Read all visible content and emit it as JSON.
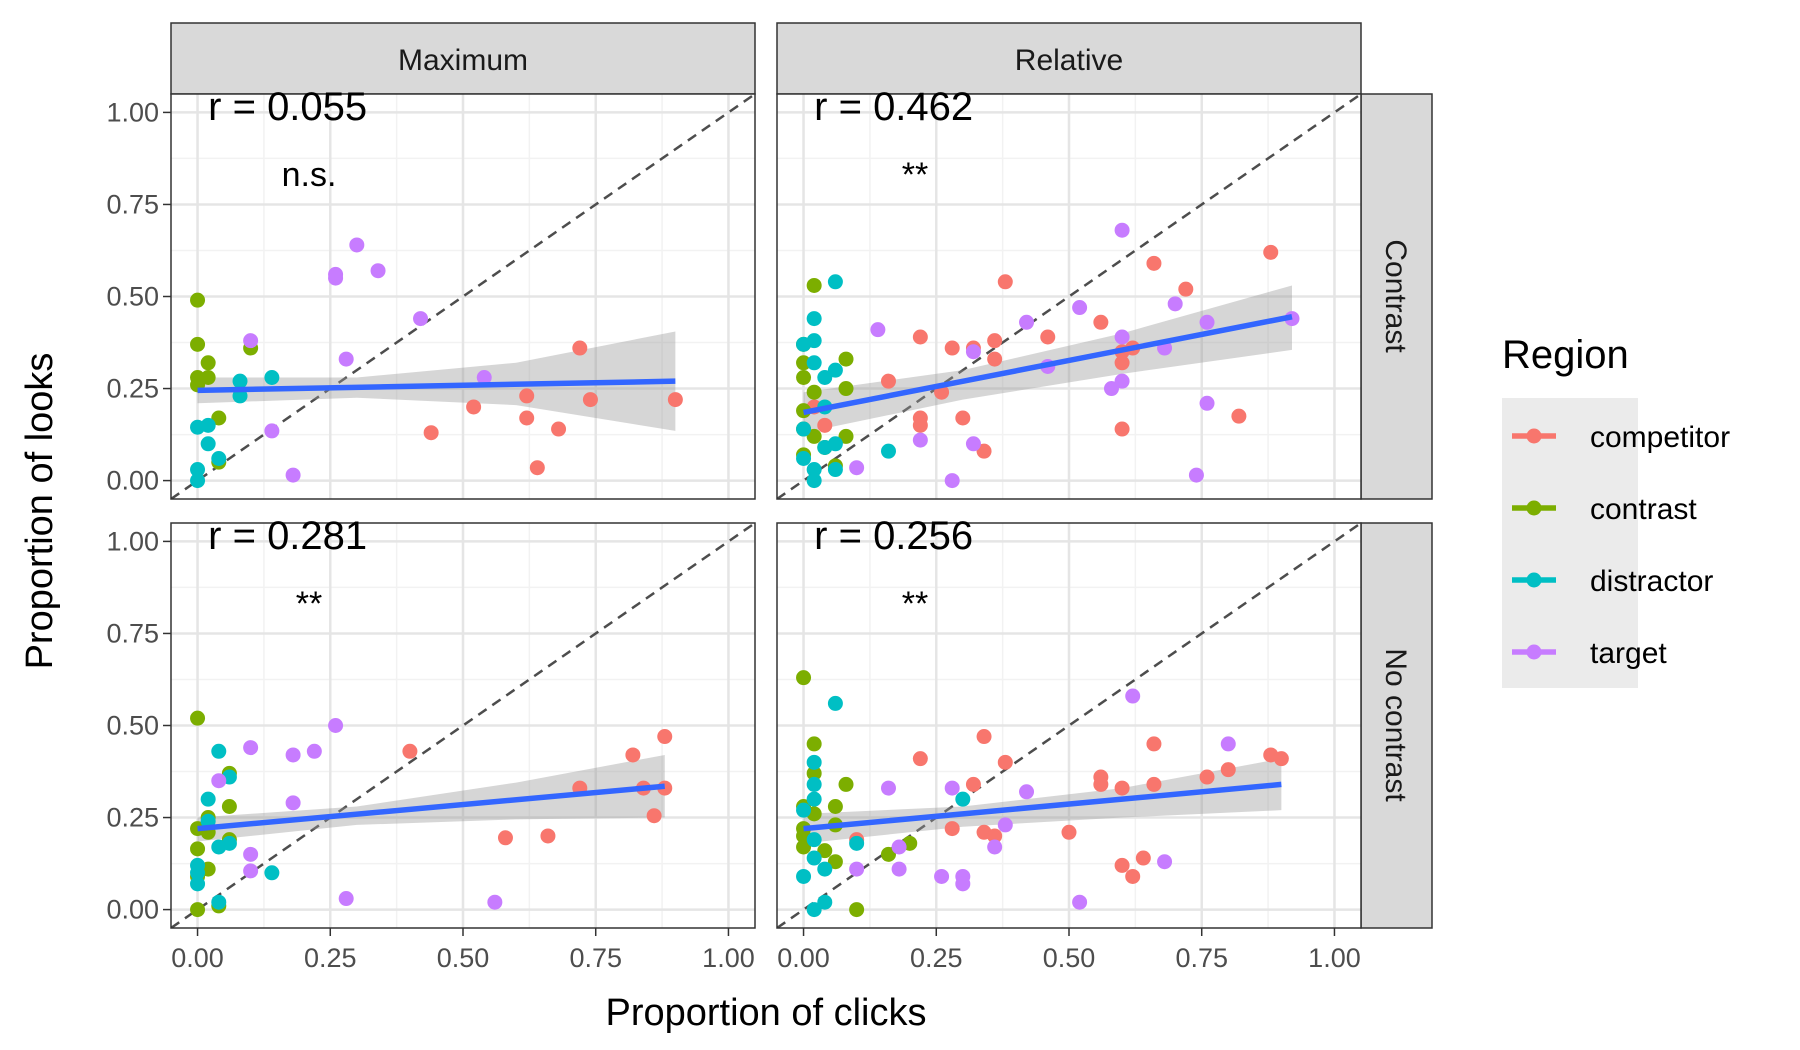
{
  "chart_data": {
    "type": "scatter",
    "xlabel": "Proportion of clicks",
    "ylabel": "Proportion of looks",
    "xlim": [
      -0.05,
      1.05
    ],
    "ylim": [
      -0.05,
      1.05
    ],
    "x_ticks": [
      "0.00",
      "0.25",
      "0.50",
      "0.75",
      "1.00"
    ],
    "y_ticks": [
      "0.00",
      "0.25",
      "0.50",
      "0.75",
      "1.00"
    ],
    "col_facets": [
      "Maximum",
      "Relative"
    ],
    "row_facets": [
      "Contrast",
      "No contrast"
    ],
    "grid": true,
    "reference_line": "y = x (dashed)",
    "legend": {
      "title": "Region",
      "position": "right",
      "items": [
        {
          "name": "competitor",
          "color": "#F8766D"
        },
        {
          "name": "contrast",
          "color": "#7CAE00"
        },
        {
          "name": "distractor",
          "color": "#00BFC4"
        },
        {
          "name": "target",
          "color": "#C77CFF"
        }
      ]
    },
    "fit_color": "#3366FF",
    "band_color": "#999999",
    "panels": [
      {
        "col": "Maximum",
        "row": "Contrast",
        "r_label": "r = 0.055",
        "sig_label": "n.s.",
        "fit": {
          "x": [
            0.0,
            0.9
          ],
          "y": [
            0.245,
            0.27
          ]
        },
        "band": {
          "x": [
            0.0,
            0.3,
            0.6,
            0.9
          ],
          "upper": [
            0.28,
            0.28,
            0.32,
            0.405
          ],
          "lower": [
            0.21,
            0.225,
            0.205,
            0.135
          ]
        },
        "points": {
          "competitor": [
            [
              0.44,
              0.13
            ],
            [
              0.52,
              0.2
            ],
            [
              0.62,
              0.23
            ],
            [
              0.62,
              0.17
            ],
            [
              0.64,
              0.035
            ],
            [
              0.68,
              0.14
            ],
            [
              0.72,
              0.36
            ],
            [
              0.74,
              0.22
            ],
            [
              0.9,
              0.22
            ]
          ],
          "contrast": [
            [
              0.0,
              0.49
            ],
            [
              0.0,
              0.37
            ],
            [
              0.0,
              0.28
            ],
            [
              0.0,
              0.26
            ],
            [
              0.02,
              0.32
            ],
            [
              0.02,
              0.28
            ],
            [
              0.04,
              0.17
            ],
            [
              0.04,
              0.05
            ],
            [
              0.1,
              0.36
            ]
          ],
          "distractor": [
            [
              0.0,
              0.145
            ],
            [
              0.0,
              0.03
            ],
            [
              0.0,
              0.0
            ],
            [
              0.02,
              0.1
            ],
            [
              0.02,
              0.15
            ],
            [
              0.04,
              0.06
            ],
            [
              0.08,
              0.27
            ],
            [
              0.08,
              0.23
            ],
            [
              0.14,
              0.28
            ]
          ],
          "target": [
            [
              0.1,
              0.38
            ],
            [
              0.14,
              0.135
            ],
            [
              0.18,
              0.015
            ],
            [
              0.26,
              0.55
            ],
            [
              0.26,
              0.56
            ],
            [
              0.28,
              0.33
            ],
            [
              0.3,
              0.64
            ],
            [
              0.34,
              0.57
            ],
            [
              0.42,
              0.44
            ],
            [
              0.54,
              0.28
            ]
          ]
        }
      },
      {
        "col": "Relative",
        "row": "Contrast",
        "r_label": "r = 0.462",
        "sig_label": "**",
        "fit": {
          "x": [
            0.0,
            0.92
          ],
          "y": [
            0.185,
            0.445
          ]
        },
        "band": {
          "x": [
            0.0,
            0.3,
            0.6,
            0.92
          ],
          "upper": [
            0.24,
            0.3,
            0.4,
            0.53
          ],
          "lower": [
            0.13,
            0.22,
            0.29,
            0.355
          ]
        },
        "points": {
          "competitor": [
            [
              0.02,
              0.2
            ],
            [
              0.04,
              0.15
            ],
            [
              0.16,
              0.27
            ],
            [
              0.22,
              0.39
            ],
            [
              0.22,
              0.17
            ],
            [
              0.22,
              0.15
            ],
            [
              0.26,
              0.24
            ],
            [
              0.28,
              0.36
            ],
            [
              0.3,
              0.17
            ],
            [
              0.32,
              0.36
            ],
            [
              0.34,
              0.08
            ],
            [
              0.36,
              0.33
            ],
            [
              0.36,
              0.38
            ],
            [
              0.38,
              0.54
            ],
            [
              0.46,
              0.39
            ],
            [
              0.56,
              0.43
            ],
            [
              0.6,
              0.32
            ],
            [
              0.6,
              0.14
            ],
            [
              0.6,
              0.35
            ],
            [
              0.62,
              0.36
            ],
            [
              0.66,
              0.59
            ],
            [
              0.72,
              0.52
            ],
            [
              0.82,
              0.175
            ],
            [
              0.88,
              0.62
            ]
          ],
          "contrast": [
            [
              0.0,
              0.37
            ],
            [
              0.0,
              0.32
            ],
            [
              0.0,
              0.28
            ],
            [
              0.0,
              0.19
            ],
            [
              0.0,
              0.14
            ],
            [
              0.0,
              0.07
            ],
            [
              0.02,
              0.53
            ],
            [
              0.02,
              0.24
            ],
            [
              0.02,
              0.12
            ],
            [
              0.04,
              0.09
            ],
            [
              0.06,
              0.04
            ],
            [
              0.08,
              0.33
            ],
            [
              0.08,
              0.25
            ],
            [
              0.08,
              0.12
            ]
          ],
          "distractor": [
            [
              0.0,
              0.37
            ],
            [
              0.0,
              0.14
            ],
            [
              0.0,
              0.06
            ],
            [
              0.02,
              0.44
            ],
            [
              0.02,
              0.38
            ],
            [
              0.02,
              0.32
            ],
            [
              0.02,
              0.03
            ],
            [
              0.02,
              0.0
            ],
            [
              0.04,
              0.28
            ],
            [
              0.04,
              0.2
            ],
            [
              0.04,
              0.09
            ],
            [
              0.06,
              0.54
            ],
            [
              0.06,
              0.3
            ],
            [
              0.06,
              0.1
            ],
            [
              0.06,
              0.03
            ],
            [
              0.16,
              0.08
            ]
          ],
          "target": [
            [
              0.1,
              0.035
            ],
            [
              0.14,
              0.41
            ],
            [
              0.22,
              0.11
            ],
            [
              0.28,
              0.0
            ],
            [
              0.32,
              0.35
            ],
            [
              0.32,
              0.1
            ],
            [
              0.42,
              0.43
            ],
            [
              0.46,
              0.31
            ],
            [
              0.52,
              0.47
            ],
            [
              0.58,
              0.25
            ],
            [
              0.6,
              0.68
            ],
            [
              0.6,
              0.39
            ],
            [
              0.6,
              0.27
            ],
            [
              0.68,
              0.36
            ],
            [
              0.7,
              0.48
            ],
            [
              0.74,
              0.015
            ],
            [
              0.76,
              0.43
            ],
            [
              0.76,
              0.21
            ],
            [
              0.92,
              0.44
            ]
          ]
        }
      },
      {
        "col": "Maximum",
        "row": "No contrast",
        "r_label": "r = 0.281",
        "sig_label": "**",
        "fit": {
          "x": [
            0.0,
            0.88
          ],
          "y": [
            0.22,
            0.335
          ]
        },
        "band": {
          "x": [
            0.0,
            0.3,
            0.6,
            0.88
          ],
          "upper": [
            0.25,
            0.28,
            0.345,
            0.42
          ],
          "lower": [
            0.185,
            0.23,
            0.245,
            0.25
          ]
        },
        "points": {
          "competitor": [
            [
              0.4,
              0.43
            ],
            [
              0.58,
              0.195
            ],
            [
              0.66,
              0.2
            ],
            [
              0.72,
              0.33
            ],
            [
              0.82,
              0.42
            ],
            [
              0.84,
              0.33
            ],
            [
              0.86,
              0.255
            ],
            [
              0.88,
              0.47
            ],
            [
              0.88,
              0.33
            ]
          ],
          "contrast": [
            [
              0.0,
              0.52
            ],
            [
              0.0,
              0.22
            ],
            [
              0.0,
              0.165
            ],
            [
              0.0,
              0.09
            ],
            [
              0.0,
              0.0
            ],
            [
              0.02,
              0.25
            ],
            [
              0.02,
              0.21
            ],
            [
              0.02,
              0.11
            ],
            [
              0.04,
              0.01
            ],
            [
              0.06,
              0.37
            ],
            [
              0.06,
              0.28
            ],
            [
              0.06,
              0.19
            ]
          ],
          "distractor": [
            [
              0.0,
              0.12
            ],
            [
              0.0,
              0.1
            ],
            [
              0.0,
              0.07
            ],
            [
              0.02,
              0.3
            ],
            [
              0.02,
              0.24
            ],
            [
              0.04,
              0.43
            ],
            [
              0.04,
              0.17
            ],
            [
              0.04,
              0.02
            ],
            [
              0.06,
              0.36
            ],
            [
              0.06,
              0.18
            ],
            [
              0.14,
              0.1
            ]
          ],
          "target": [
            [
              0.04,
              0.35
            ],
            [
              0.1,
              0.44
            ],
            [
              0.1,
              0.15
            ],
            [
              0.1,
              0.105
            ],
            [
              0.18,
              0.42
            ],
            [
              0.18,
              0.29
            ],
            [
              0.22,
              0.43
            ],
            [
              0.26,
              0.5
            ],
            [
              0.28,
              0.03
            ],
            [
              0.56,
              0.02
            ]
          ]
        }
      },
      {
        "col": "Relative",
        "row": "No contrast",
        "r_label": "r = 0.256",
        "sig_label": "**",
        "fit": {
          "x": [
            0.0,
            0.9
          ],
          "y": [
            0.22,
            0.34
          ]
        },
        "band": {
          "x": [
            0.0,
            0.3,
            0.6,
            0.9
          ],
          "upper": [
            0.26,
            0.28,
            0.33,
            0.41
          ],
          "lower": [
            0.18,
            0.225,
            0.25,
            0.27
          ]
        },
        "points": {
          "competitor": [
            [
              0.1,
              0.19
            ],
            [
              0.22,
              0.41
            ],
            [
              0.28,
              0.22
            ],
            [
              0.32,
              0.34
            ],
            [
              0.34,
              0.21
            ],
            [
              0.34,
              0.47
            ],
            [
              0.36,
              0.2
            ],
            [
              0.38,
              0.4
            ],
            [
              0.5,
              0.21
            ],
            [
              0.56,
              0.36
            ],
            [
              0.56,
              0.34
            ],
            [
              0.6,
              0.33
            ],
            [
              0.6,
              0.12
            ],
            [
              0.62,
              0.09
            ],
            [
              0.64,
              0.14
            ],
            [
              0.66,
              0.45
            ],
            [
              0.66,
              0.34
            ],
            [
              0.76,
              0.36
            ],
            [
              0.8,
              0.38
            ],
            [
              0.88,
              0.42
            ],
            [
              0.9,
              0.41
            ]
          ],
          "contrast": [
            [
              0.0,
              0.63
            ],
            [
              0.0,
              0.28
            ],
            [
              0.0,
              0.22
            ],
            [
              0.0,
              0.2
            ],
            [
              0.0,
              0.17
            ],
            [
              0.02,
              0.45
            ],
            [
              0.02,
              0.37
            ],
            [
              0.02,
              0.26
            ],
            [
              0.04,
              0.16
            ],
            [
              0.06,
              0.28
            ],
            [
              0.06,
              0.23
            ],
            [
              0.06,
              0.13
            ],
            [
              0.08,
              0.34
            ],
            [
              0.1,
              0.0
            ],
            [
              0.16,
              0.15
            ],
            [
              0.2,
              0.18
            ]
          ],
          "distractor": [
            [
              0.0,
              0.27
            ],
            [
              0.0,
              0.09
            ],
            [
              0.02,
              0.4
            ],
            [
              0.02,
              0.34
            ],
            [
              0.02,
              0.3
            ],
            [
              0.02,
              0.19
            ],
            [
              0.02,
              0.14
            ],
            [
              0.02,
              0.0
            ],
            [
              0.04,
              0.11
            ],
            [
              0.04,
              0.02
            ],
            [
              0.06,
              0.56
            ],
            [
              0.1,
              0.18
            ],
            [
              0.3,
              0.3
            ]
          ],
          "target": [
            [
              0.1,
              0.11
            ],
            [
              0.16,
              0.33
            ],
            [
              0.18,
              0.17
            ],
            [
              0.18,
              0.11
            ],
            [
              0.26,
              0.09
            ],
            [
              0.28,
              0.33
            ],
            [
              0.3,
              0.09
            ],
            [
              0.3,
              0.07
            ],
            [
              0.36,
              0.17
            ],
            [
              0.38,
              0.23
            ],
            [
              0.42,
              0.32
            ],
            [
              0.52,
              0.02
            ],
            [
              0.62,
              0.58
            ],
            [
              0.68,
              0.13
            ],
            [
              0.8,
              0.45
            ]
          ]
        }
      }
    ]
  }
}
